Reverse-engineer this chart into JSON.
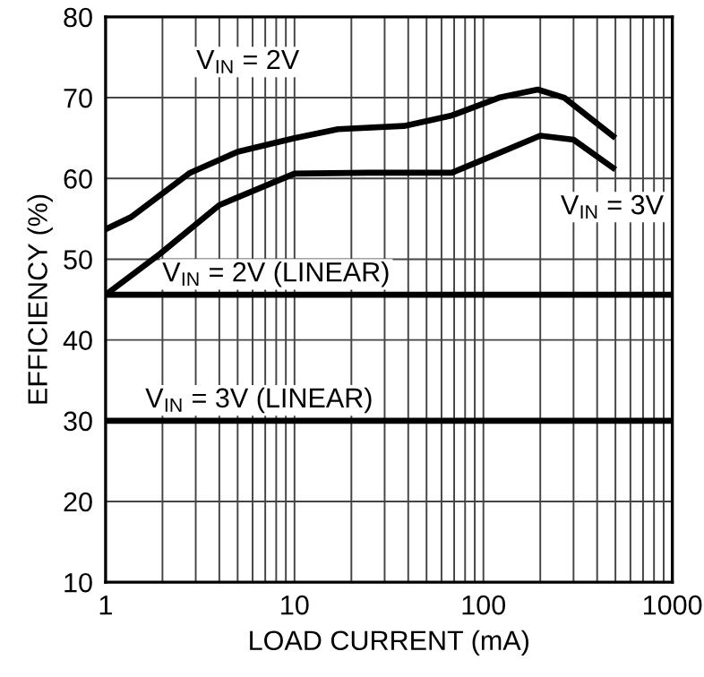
{
  "chart_data": {
    "type": "line",
    "xlabel": "LOAD CURRENT (mA)",
    "ylabel": "EFFICIENCY (%)",
    "log": "x",
    "xlim": [
      1,
      1000
    ],
    "xticks": [
      1,
      10,
      100,
      1000
    ],
    "ylim": [
      10,
      80
    ],
    "yticks": [
      10,
      20,
      30,
      40,
      50,
      60,
      70,
      80
    ],
    "grid": true,
    "legend": false,
    "marker": "none",
    "line_style": "solid",
    "series": [
      {
        "name": "V$_{IN}$ = 2V",
        "color": "#000000",
        "x": [
          1,
          1.36,
          2.8,
          5,
          10,
          17,
          38,
          68,
          121,
          194,
          268,
          500
        ],
        "values": [
          53.7,
          55.2,
          60.7,
          63.3,
          65.0,
          66.1,
          66.5,
          67.8,
          70.0,
          71.0,
          70.0,
          65.0
        ]
      },
      {
        "name": "V$_{IN}$ = 3V",
        "color": "#000000",
        "x": [
          1,
          1.95,
          4,
          10,
          24.5,
          68,
          97,
          200,
          300,
          500
        ],
        "values": [
          45.6,
          50.7,
          56.7,
          60.6,
          60.7,
          60.7,
          62.2,
          65.3,
          64.8,
          61.1
        ]
      },
      {
        "name": "V$_{IN}$ = 2V (LINEAR)",
        "color": "#000000",
        "x": [
          1,
          1000
        ],
        "values": [
          45.6,
          45.6
        ]
      },
      {
        "name": "V$_{IN}$ = 3V (LINEAR)",
        "color": "#000000",
        "x": [
          1,
          1000
        ],
        "values": [
          30,
          30
        ]
      }
    ]
  }
}
